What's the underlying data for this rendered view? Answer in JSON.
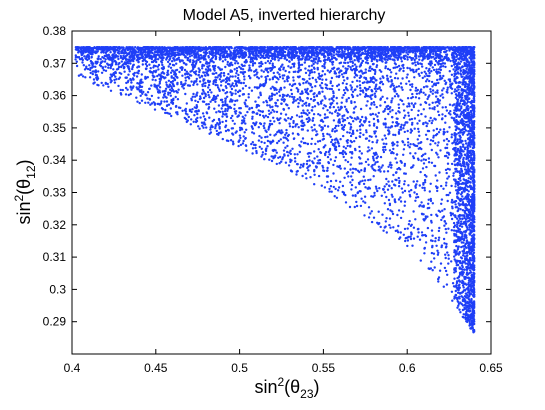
{
  "chart_data": {
    "type": "scatter",
    "title": "Model A5, inverted hierarchy",
    "xlabel": {
      "base": "sin",
      "sup": "2",
      "open": "(θ",
      "sub": "23",
      "close": ")"
    },
    "ylabel": {
      "base": "sin",
      "sup": "2",
      "open": "(θ",
      "sub": "12",
      "close": ")"
    },
    "xlim": [
      0.4,
      0.65
    ],
    "ylim": [
      0.28,
      0.38
    ],
    "xticks": [
      "0.4",
      "0.45",
      "0.5",
      "0.55",
      "0.6",
      "0.65"
    ],
    "yticks": [
      "0.29",
      "0.3",
      "0.31",
      "0.32",
      "0.33",
      "0.34",
      "0.35",
      "0.36",
      "0.37",
      "0.38"
    ],
    "grid": false,
    "marker_color": "#1f3ff7",
    "region": {
      "x_range": [
        0.402,
        0.64
      ],
      "y_max": 0.375,
      "y_min_boundary": [
        [
          0.402,
          0.366
        ],
        [
          0.45,
          0.3555
        ],
        [
          0.5,
          0.344
        ],
        [
          0.55,
          0.331
        ],
        [
          0.6,
          0.313
        ],
        [
          0.625,
          0.298
        ],
        [
          0.64,
          0.286
        ]
      ],
      "dense_band_top_y": 0.375,
      "dense_band_right_x": 0.64
    }
  }
}
